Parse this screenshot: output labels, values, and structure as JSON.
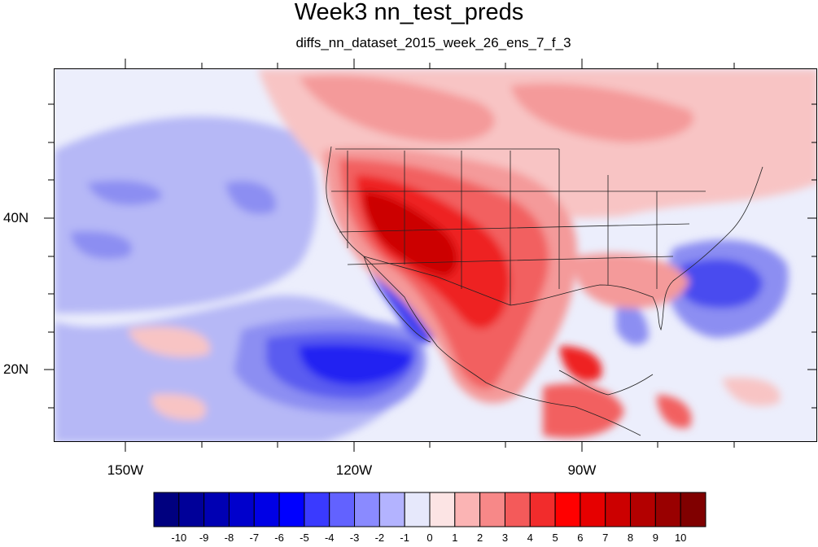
{
  "title": "Week3 nn_test_preds",
  "subtitle": "diffs_nn_dataset_2015_week_26_ens_7_f_3",
  "map": {
    "region": "North Pacific, North America and Central America",
    "lon_range": [
      -160,
      -60
    ],
    "lat_range": [
      10,
      58
    ],
    "x_tick_labels": [
      "150W",
      "120W",
      "90W"
    ],
    "y_tick_labels": [
      "40N",
      "20N"
    ],
    "field_description": "difference field, warm (red) over western/southern US and Mexico, cool (blue) off Baja California, west of Florida peninsula and southeast US coast"
  },
  "colorbar": {
    "labels": [
      "-10",
      "-9",
      "-8",
      "-7",
      "-6",
      "-5",
      "-4",
      "-3",
      "-2",
      "-1",
      "0",
      "1",
      "2",
      "3",
      "4",
      "5",
      "6",
      "7",
      "8",
      "9",
      "10"
    ],
    "colors": [
      "#00007f",
      "#000099",
      "#0000b3",
      "#0000cc",
      "#0000e6",
      "#0000ff",
      "#3a3aff",
      "#6262ff",
      "#8a8aff",
      "#b3b3ff",
      "#e6e8fb",
      "#fce4e4",
      "#fbb4b4",
      "#f78888",
      "#f45a5a",
      "#f22c2c",
      "#ff0000",
      "#e60000",
      "#cc0000",
      "#b30000",
      "#990000",
      "#800000"
    ]
  }
}
